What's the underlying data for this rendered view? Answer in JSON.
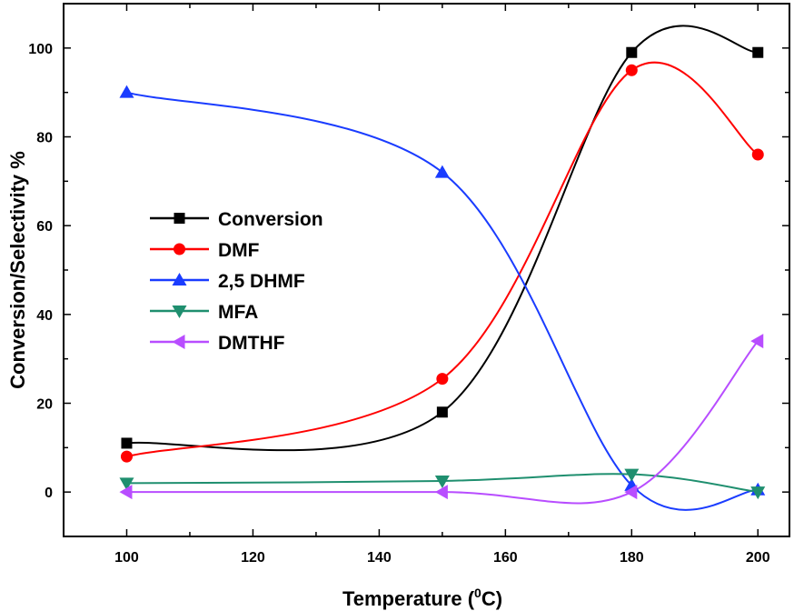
{
  "chart_data": {
    "type": "line",
    "xlabel": "Temperature (",
    "xlabel_sup": "0",
    "xlabel_suffix": "C)",
    "ylabel": "Conversion/Selectivity %",
    "xlim": [
      90,
      205
    ],
    "ylim": [
      -10,
      110
    ],
    "xticks": [
      100,
      120,
      140,
      160,
      180,
      200
    ],
    "yticks": [
      0,
      20,
      40,
      60,
      80,
      100
    ],
    "grid": false,
    "legend_position": "center-left",
    "x": [
      100,
      150,
      180,
      200
    ],
    "series": [
      {
        "name": "Conversion",
        "marker": "square",
        "color": "#000000",
        "values": [
          11,
          18,
          99,
          99
        ]
      },
      {
        "name": "DMF",
        "marker": "circle",
        "color": "#ff0000",
        "values": [
          8,
          25.5,
          95,
          76
        ]
      },
      {
        "name": "2,5 DHMF",
        "marker": "triangle-up",
        "color": "#1a3cff",
        "values": [
          90,
          72,
          1.5,
          0.5
        ]
      },
      {
        "name": "MFA",
        "marker": "triangle-down",
        "color": "#1f8f6f",
        "values": [
          2,
          2.5,
          4,
          0
        ]
      },
      {
        "name": "DMTHF",
        "marker": "triangle-left",
        "color": "#b84dff",
        "values": [
          0,
          0,
          0,
          34
        ]
      }
    ]
  }
}
